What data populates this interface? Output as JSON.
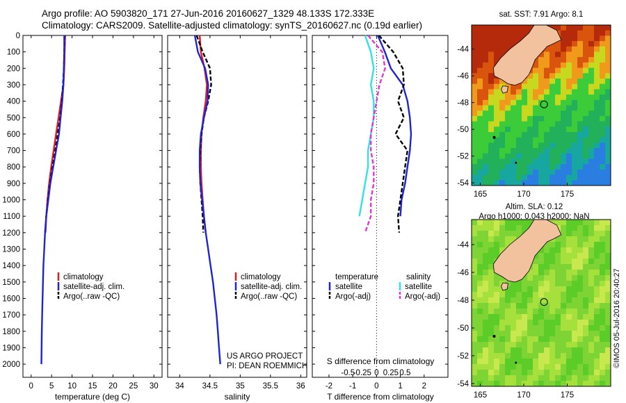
{
  "header": {
    "title_line1": "Argo profile: AO 5903820_171 27-Jun-2016 20160627_1329 48.133S 172.333E",
    "title_line2": "Climatology: CARS2009. Satellite-adjusted climatology: synTS_20160627.nc (0.19d earlier)"
  },
  "colors": {
    "climatology": "#e41a1c",
    "satellite": "#1f23d6",
    "argo": "#000000",
    "satellite_salinity": "#33e0e8",
    "argo_salinity": "#e633d6",
    "land": "#f2c29e"
  },
  "depth_ticks": [
    "0",
    "100",
    "200",
    "300",
    "400",
    "500",
    "600",
    "700",
    "800",
    "900",
    "1000",
    "1100",
    "1200",
    "1300",
    "1400",
    "1500",
    "1600",
    "1700",
    "1800",
    "1900",
    "2000"
  ],
  "chart_data": [
    {
      "type": "line",
      "id": "temperature",
      "xlabel": "temperature (deg C)",
      "xlim": [
        -2,
        32
      ],
      "ylim": [
        2080,
        0
      ],
      "xticks": [
        "0",
        "5",
        "10",
        "15",
        "20",
        "25",
        "30"
      ],
      "legend": [
        "climatology",
        "satellite-adj. clim.",
        "Argo(..raw -QC)"
      ],
      "series": [
        {
          "name": "climatology",
          "depth": [
            0,
            100,
            200,
            300,
            400,
            500,
            600,
            700,
            800,
            900,
            1000,
            1100,
            1200
          ],
          "values": [
            8.3,
            8.2,
            8.1,
            7.9,
            7.3,
            6.7,
            6.1,
            5.5,
            4.9,
            4.4,
            4.0,
            3.7,
            3.5
          ]
        },
        {
          "name": "satellite-adj. clim.",
          "depth": [
            0,
            100,
            200,
            300,
            400,
            500,
            600,
            700,
            800,
            900,
            1000,
            1100,
            1200,
            1300,
            1400,
            1500,
            1600,
            1700,
            1800,
            1900,
            2000
          ],
          "values": [
            8.1,
            8.1,
            8.0,
            7.9,
            7.6,
            7.2,
            6.8,
            6.1,
            5.4,
            4.7,
            4.2,
            3.7,
            3.4,
            3.2,
            3.0,
            2.9,
            2.8,
            2.7,
            2.6,
            2.55,
            2.5
          ]
        },
        {
          "name": "Argo(..raw -QC)",
          "depth": [
            0,
            100,
            200,
            300,
            400,
            500,
            600,
            700,
            800,
            900,
            1000,
            1100,
            1200
          ],
          "values": [
            8.2,
            8.1,
            8.0,
            7.8,
            7.5,
            7.1,
            6.5,
            5.9,
            5.2,
            4.6,
            4.1,
            3.7,
            3.4
          ]
        }
      ]
    },
    {
      "type": "line",
      "id": "salinity",
      "xlabel": "salinity",
      "xlim": [
        33.8,
        36.1
      ],
      "ylim": [
        2080,
        0
      ],
      "xticks": [
        "34",
        "34.5",
        "35",
        "35.5",
        "36"
      ],
      "legend": [
        "climatology",
        "satellite-adj. clim.",
        "Argo(..raw -QC)"
      ],
      "annotation": [
        "US ARGO PROJECT",
        "PI: DEAN ROEMMICH"
      ],
      "series": [
        {
          "name": "climatology",
          "depth": [
            0,
            100,
            200,
            300,
            400,
            500,
            600,
            700,
            800,
            900,
            1000,
            1100,
            1200
          ],
          "values": [
            34.33,
            34.35,
            34.41,
            34.45,
            34.43,
            34.39,
            34.36,
            34.35,
            34.35,
            34.36,
            34.38,
            34.4,
            34.43
          ]
        },
        {
          "name": "satellite-adj. clim.",
          "depth": [
            0,
            100,
            200,
            300,
            400,
            500,
            600,
            700,
            800,
            900,
            1000,
            1100,
            1200,
            1300,
            1400,
            1500,
            1600,
            1700,
            1800,
            1900,
            2000
          ],
          "values": [
            34.25,
            34.3,
            34.42,
            34.47,
            34.46,
            34.4,
            34.35,
            34.33,
            34.33,
            34.34,
            34.37,
            34.4,
            34.43,
            34.47,
            34.51,
            34.55,
            34.58,
            34.61,
            34.63,
            34.65,
            34.67
          ]
        },
        {
          "name": "Argo(..raw -QC)",
          "depth": [
            0,
            100,
            200,
            300,
            400,
            500,
            600,
            700,
            800,
            900,
            1000,
            1100,
            1200
          ],
          "values": [
            34.28,
            34.38,
            34.5,
            34.52,
            34.47,
            34.4,
            34.36,
            34.34,
            34.33,
            34.34,
            34.36,
            34.38,
            34.39
          ]
        }
      ]
    },
    {
      "type": "line",
      "id": "differences",
      "xlabel": "T difference from climatology",
      "xlabel_top": "S difference from climatology",
      "xlim": [
        -2.7,
        3.0
      ],
      "ylim": [
        2080,
        0
      ],
      "xticks": [
        "-2",
        "-1",
        "0",
        "1",
        "2"
      ],
      "xticks_s": [
        "-0.5",
        "-0.25",
        "0",
        "0.25",
        "0.5"
      ],
      "legend": {
        "temperature": "temperature",
        "salinity": "salinity",
        "items": [
          "satellite",
          "Argo(-adj)",
          "satellite",
          "Argo(-adj)"
        ]
      },
      "series": [
        {
          "name": "satellite",
          "group": "temperature",
          "depth": [
            0,
            100,
            200,
            300,
            400,
            500,
            600,
            700,
            800,
            900,
            1000,
            1100
          ],
          "values": [
            0.05,
            0.35,
            0.6,
            1.1,
            1.3,
            1.4,
            1.45,
            1.4,
            1.3,
            1.2,
            1.05,
            1.0
          ]
        },
        {
          "name": "Argo(-adj)",
          "group": "temperature",
          "depth": [
            0,
            100,
            200,
            300,
            400,
            500,
            600,
            700,
            800,
            900,
            1000,
            1100,
            1200
          ],
          "values": [
            0.1,
            0.7,
            1.1,
            1.15,
            0.9,
            1.15,
            0.8,
            1.3,
            1.2,
            1.1,
            1.0,
            0.9,
            0.95
          ]
        },
        {
          "name": "satellite",
          "group": "salinity",
          "depth": [
            0,
            100,
            200,
            300,
            400,
            500,
            600,
            700,
            800,
            900,
            1000,
            1100
          ],
          "values": [
            -0.2,
            -0.1,
            -0.05,
            -0.1,
            -0.05,
            -0.05,
            -0.1,
            -0.15,
            -0.15,
            -0.2,
            -0.25,
            -0.3
          ]
        },
        {
          "name": "Argo(-adj)",
          "group": "salinity",
          "depth": [
            0,
            100,
            200,
            300,
            400,
            500,
            600,
            700,
            800,
            900,
            1000,
            1100,
            1200
          ],
          "values": [
            -0.15,
            0.1,
            0.15,
            0.05,
            0.0,
            -0.05,
            -0.1,
            -0.1,
            -0.05,
            -0.05,
            -0.1,
            -0.1,
            -0.2
          ]
        }
      ]
    },
    {
      "type": "heatmap",
      "id": "sst-map",
      "title": "sat. SST: 7.91  Argo: 8.1",
      "xticks": [
        "165",
        "170",
        "175"
      ],
      "yticks": [
        "-44",
        "-46",
        "-48",
        "-50",
        "-52",
        "-54"
      ],
      "xlim": [
        164,
        180
      ],
      "ylim": [
        -54.2,
        -42.2
      ],
      "argo_location": [
        172.333,
        -48.133
      ]
    },
    {
      "type": "heatmap",
      "id": "sla-map",
      "title_line1": "Altim. SLA: 0.12",
      "title_line2": "Argo h1000: 0.043 h2000: NaN",
      "xticks": [
        "165",
        "170",
        "175"
      ],
      "yticks": [
        "-44",
        "-46",
        "-48",
        "-50",
        "-52",
        "-54"
      ],
      "xlim": [
        164,
        180
      ],
      "ylim": [
        -54.2,
        -42.2
      ],
      "argo_location": [
        172.333,
        -48.133
      ],
      "side_label": "©IMOS 05-Jul-2016 20:40:27"
    }
  ]
}
